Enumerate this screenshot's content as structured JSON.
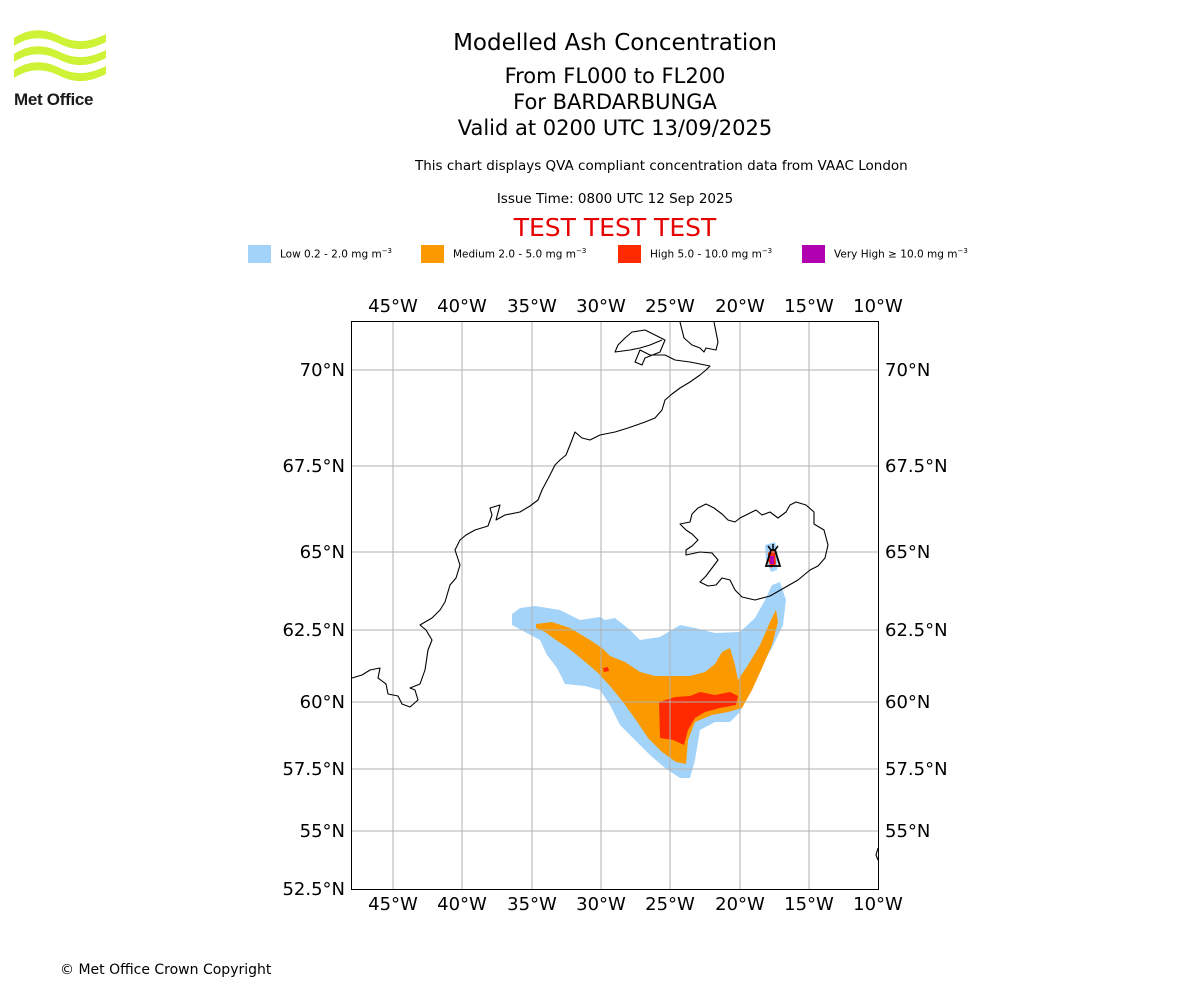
{
  "logo": {
    "name": "Met Office",
    "accent": "#cef235"
  },
  "title": {
    "line1": "Modelled Ash Concentration",
    "line2": "From FL000 to FL200",
    "line3": "For BARDARBUNGA",
    "line4": "Valid at 0200 UTC 13/09/2025"
  },
  "subtitle": "This chart displays QVA compliant concentration data from VAAC London",
  "issue_time": "Issue Time: 0800 UTC 12 Sep 2025",
  "test_banner": "TEST TEST TEST",
  "test_color": "#e60000",
  "legend": [
    {
      "label": "Low 0.2 - 2.0 mg m",
      "color": "#a4d3fa"
    },
    {
      "label": "Medium 2.0 - 5.0 mg m",
      "color": "#fb9a00"
    },
    {
      "label": "High 5.0 - 10.0 mg m",
      "color": "#ff2a00"
    },
    {
      "label": "Very High ≥ 10.0 mg m",
      "color": "#b000b0"
    }
  ],
  "legend_unit_exponent": "−3",
  "map": {
    "lon_labels": [
      "45°W",
      "40°W",
      "35°W",
      "30°W",
      "25°W",
      "20°W",
      "15°W",
      "10°W"
    ],
    "lat_labels": [
      "70°N",
      "67.5°N",
      "65°N",
      "62.5°N",
      "60°N",
      "57.5°N",
      "55°N",
      "52.5°N"
    ],
    "volcano": "BARDARBUNGA",
    "volcano_icon": "volcano-marker-icon"
  },
  "copyright": "© Met Office Crown Copyright"
}
